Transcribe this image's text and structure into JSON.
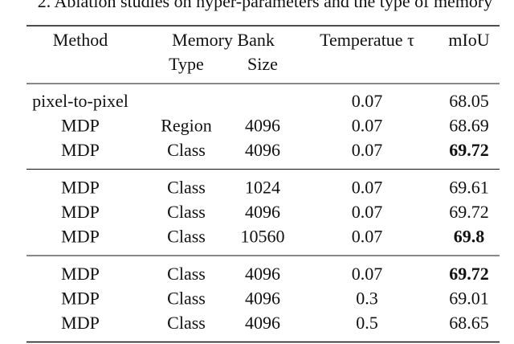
{
  "caption": "2.  Ablation studies on hyper-parameters and the type of memory",
  "table": {
    "header": {
      "method": "Method",
      "memory_bank": "Memory Bank",
      "type": "Type",
      "size": "Size",
      "temperature": "Temperatue τ",
      "miou": "mIoU"
    },
    "groups": [
      {
        "best": 2,
        "rows": [
          [
            "pixel-to-pixel",
            null,
            null,
            "0.07",
            "68.05"
          ],
          [
            "MDP",
            "Region",
            "4096",
            "0.07",
            "68.69"
          ],
          [
            "MDP",
            "Class",
            "4096",
            "0.07",
            "69.72"
          ]
        ]
      },
      {
        "best": 2,
        "rows": [
          [
            "MDP",
            "Class",
            "1024",
            "0.07",
            "69.61"
          ],
          [
            "MDP",
            "Class",
            "4096",
            "0.07",
            "69.72"
          ],
          [
            "MDP",
            "Class",
            "10560",
            "0.07",
            "69.8"
          ]
        ]
      },
      {
        "best": 0,
        "rows": [
          [
            "MDP",
            "Class",
            "4096",
            "0.07",
            "69.72"
          ],
          [
            "MDP",
            "Class",
            "4096",
            "0.3",
            "69.01"
          ],
          [
            "MDP",
            "Class",
            "4096",
            "0.5",
            "68.65"
          ]
        ]
      }
    ]
  }
}
